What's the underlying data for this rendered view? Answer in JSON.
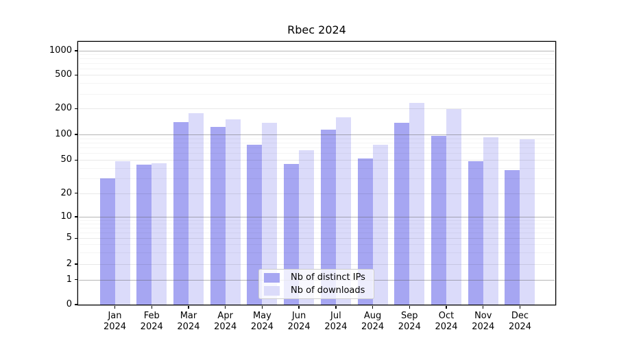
{
  "title": "Rbec 2024",
  "legend": {
    "items": [
      {
        "label": "Nb of distinct IPs",
        "color": "#a6a6f2"
      },
      {
        "label": "Nb of downloads",
        "color": "#dbdbfa"
      }
    ]
  },
  "y_axis": {
    "tick_labels": [
      "0",
      "1",
      "2",
      "5",
      "10",
      "20",
      "50",
      "100",
      "200",
      "500",
      "1000"
    ]
  },
  "x_axis": {
    "year_label": "2024",
    "months": [
      "Jan",
      "Feb",
      "Mar",
      "Apr",
      "May",
      "Jun",
      "Jul",
      "Aug",
      "Sep",
      "Oct",
      "Nov",
      "Dec"
    ]
  },
  "chart_data": {
    "type": "bar",
    "title": "Rbec 2024",
    "categories": [
      "Jan 2024",
      "Feb 2024",
      "Mar 2024",
      "Apr 2024",
      "May 2024",
      "Jun 2024",
      "Jul 2024",
      "Aug 2024",
      "Sep 2024",
      "Oct 2024",
      "Nov 2024",
      "Dec 2024"
    ],
    "series": [
      {
        "name": "Nb of distinct IPs",
        "color": "#a6a6f2",
        "values": [
          30,
          44,
          138,
          122,
          75,
          45,
          113,
          52,
          137,
          96,
          48,
          38
        ]
      },
      {
        "name": "Nb of downloads",
        "color": "#dbdbfa",
        "values": [
          48,
          46,
          178,
          150,
          136,
          65,
          158,
          75,
          232,
          198,
          92,
          87
        ]
      }
    ],
    "xlabel": "",
    "ylabel": "",
    "yscale": "symlog",
    "yticks": [
      0,
      1,
      2,
      5,
      10,
      20,
      50,
      100,
      200,
      500,
      1000
    ],
    "ylim": [
      0,
      1300
    ],
    "grid": "on",
    "legend_position": "lower center"
  }
}
